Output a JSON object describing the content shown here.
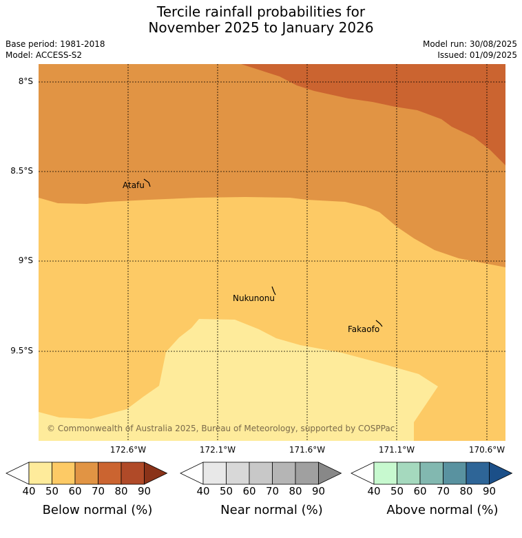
{
  "title_line1": "Tercile rainfall probabilities for",
  "title_line2": "November 2025 to January 2026",
  "meta": {
    "base_period": "Base period: 1981-2018",
    "model": "Model: ACCESS-S2",
    "model_run": "Model run: 30/08/2025",
    "issued": "Issued: 01/09/2025"
  },
  "map": {
    "lat_ticks": [
      "8°S",
      "8.5°S",
      "9°S",
      "9.5°S"
    ],
    "lon_ticks": [
      "172.6°W",
      "172.1°W",
      "171.6°W",
      "171.1°W",
      "170.6°W"
    ],
    "places": [
      "Atafu",
      "Nukunonu",
      "Fakaofo"
    ],
    "copyright": "© Commonwealth of Australia 2025, Bureau of Meteorology, supported by COSPPac",
    "colors": {
      "below_40_50": "#feeb9b",
      "below_50_60": "#fdca65",
      "below_60_70": "#e19444",
      "below_70_80": "#cb6430"
    }
  },
  "colorbars": [
    {
      "label": "Below normal (%)",
      "ticks": [
        "40",
        "50",
        "60",
        "70",
        "80",
        "90"
      ],
      "colors": [
        "#feeb9b",
        "#fdca65",
        "#e19444",
        "#cb6430",
        "#b04a28",
        "#8a3319"
      ]
    },
    {
      "label": "Near normal (%)",
      "ticks": [
        "40",
        "50",
        "60",
        "70",
        "80",
        "90"
      ],
      "colors": [
        "#e8e8e8",
        "#d8d8d8",
        "#c8c8c8",
        "#b5b5b5",
        "#a0a0a0",
        "#888888"
      ]
    },
    {
      "label": "Above normal (%)",
      "ticks": [
        "40",
        "50",
        "60",
        "70",
        "80",
        "90"
      ],
      "colors": [
        "#c7f9cf",
        "#a5d9be",
        "#82b8b0",
        "#5992a0",
        "#2e6597",
        "#1b4f88"
      ]
    }
  ]
}
